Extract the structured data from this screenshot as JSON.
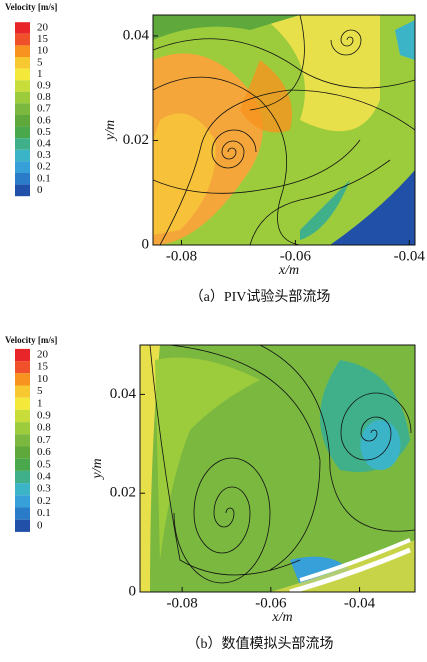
{
  "chart_data": [
    {
      "type": "streamline",
      "caption": "（a）PIV试验头部流场",
      "xlabel": "x/m",
      "ylabel": "y/m",
      "xlim": [
        -0.085,
        -0.039
      ],
      "xticks": [
        -0.08,
        -0.06,
        -0.04
      ],
      "ylim": [
        0,
        0.044
      ],
      "yticks": [
        0,
        0.02,
        0.04
      ],
      "colorbar": {
        "title": "Velocity [m/s]",
        "levels": [
          20,
          15,
          10,
          5,
          1,
          0.9,
          0.8,
          0.7,
          0.6,
          0.5,
          0.4,
          0.3,
          0.2,
          0.1,
          0
        ],
        "colors": [
          "#e8262a",
          "#f0502a",
          "#f7931e",
          "#f8c830",
          "#f4e83a",
          "#c8dc3a",
          "#9ccc3c",
          "#7ab840",
          "#5ea83c",
          "#4aa84c",
          "#40b08a",
          "#3cb4c8",
          "#38a0d8",
          "#2a7cc8",
          "#2050a8"
        ]
      }
    },
    {
      "type": "streamline",
      "caption": "（b）数值模拟头部流场",
      "xlabel": "x/m",
      "ylabel": "y/m",
      "xlim": [
        -0.0895,
        -0.0275
      ],
      "xticks": [
        -0.08,
        -0.06,
        -0.04
      ],
      "ylim": [
        0,
        0.05
      ],
      "yticks": [
        0,
        0.02,
        0.04
      ],
      "colorbar": {
        "title": "Velocity [m/s]",
        "levels": [
          20,
          15,
          10,
          5,
          1,
          0.9,
          0.8,
          0.7,
          0.6,
          0.5,
          0.4,
          0.3,
          0.2,
          0.1,
          0
        ],
        "colors": [
          "#e8262a",
          "#f0502a",
          "#f7931e",
          "#f8c830",
          "#f4e83a",
          "#c8dc3a",
          "#9ccc3c",
          "#7ab840",
          "#5ea83c",
          "#4aa84c",
          "#40b08a",
          "#3cb4c8",
          "#38a0d8",
          "#2a7cc8",
          "#2050a8"
        ]
      }
    }
  ]
}
